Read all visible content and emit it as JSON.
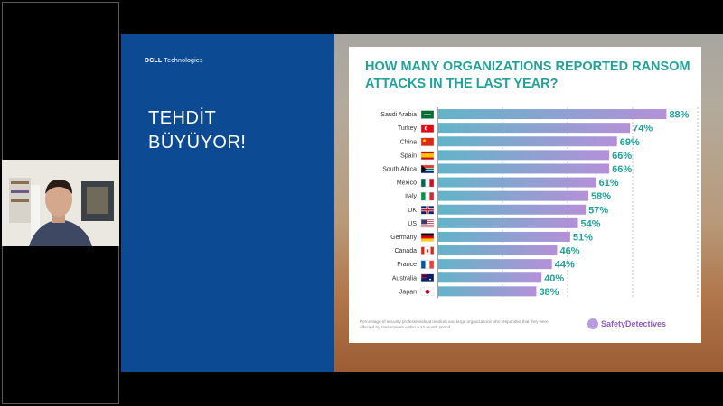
{
  "slide": {
    "logo_bold": "DЄLL",
    "logo_rest": "Technologies",
    "title_line1": "TEHDİT",
    "title_line2": "BÜYÜYOR!"
  },
  "chart": {
    "title_line1": "HOW MANY ORGANIZATIONS REPORTED RANSOM",
    "title_line2": "ATTACKS IN THE LAST YEAR?",
    "footnote": "Percentage of security professionals at medium and large organizations who responded that they were affected by ransomware within a 12 month period.",
    "brand": "SafetyDetectives"
  },
  "colors": {
    "bar_start": "#62b4c8",
    "bar_end": "#b490d8",
    "accent": "#22a19b",
    "slide_blue": "#0c4a94"
  },
  "chart_data": {
    "type": "bar",
    "orientation": "horizontal",
    "categories": [
      "Saudi Arabia",
      "Turkey",
      "China",
      "Spain",
      "South Africa",
      "Mexico",
      "Italy",
      "UK",
      "US",
      "Germany",
      "Canada",
      "France",
      "Australia",
      "Japan"
    ],
    "values": [
      88,
      74,
      69,
      66,
      66,
      61,
      58,
      57,
      54,
      51,
      46,
      44,
      40,
      38
    ],
    "labels": [
      "88%",
      "74%",
      "69%",
      "66%",
      "66%",
      "61%",
      "58%",
      "57%",
      "54%",
      "51%",
      "46%",
      "44%",
      "40%",
      "38%"
    ],
    "flags": [
      "flag-saudi-arabia-icon",
      "flag-turkey-icon",
      "flag-china-icon",
      "flag-spain-icon",
      "flag-south-africa-icon",
      "flag-mexico-icon",
      "flag-italy-icon",
      "flag-uk-icon",
      "flag-us-icon",
      "flag-germany-icon",
      "flag-canada-icon",
      "flag-france-icon",
      "flag-australia-icon",
      "flag-japan-icon"
    ],
    "xlim": [
      0,
      100
    ],
    "grid": true
  }
}
